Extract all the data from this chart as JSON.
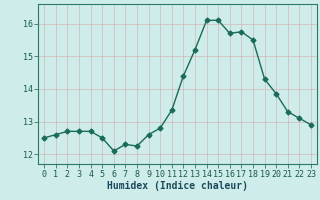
{
  "x": [
    0,
    1,
    2,
    3,
    4,
    5,
    6,
    7,
    8,
    9,
    10,
    11,
    12,
    13,
    14,
    15,
    16,
    17,
    18,
    19,
    20,
    21,
    22,
    23
  ],
  "y": [
    12.5,
    12.6,
    12.7,
    12.7,
    12.7,
    12.5,
    12.1,
    12.3,
    12.25,
    12.6,
    12.8,
    13.35,
    14.4,
    15.2,
    16.1,
    16.1,
    15.7,
    15.75,
    15.5,
    14.3,
    13.85,
    13.3,
    13.1,
    12.9
  ],
  "line_color": "#1a6b5a",
  "marker": "D",
  "markersize": 2.5,
  "linewidth": 1.0,
  "bg_color": "#ceecea",
  "grid_color_v": "#d4b8b8",
  "grid_color_h": "#d4b8b8",
  "xlabel": "Humidex (Indice chaleur)",
  "xlim": [
    -0.5,
    23.5
  ],
  "ylim": [
    11.7,
    16.6
  ],
  "yticks": [
    12,
    13,
    14,
    15,
    16
  ],
  "xticks": [
    0,
    1,
    2,
    3,
    4,
    5,
    6,
    7,
    8,
    9,
    10,
    11,
    12,
    13,
    14,
    15,
    16,
    17,
    18,
    19,
    20,
    21,
    22,
    23
  ],
  "tick_fontsize": 6,
  "xlabel_fontsize": 7,
  "xlabel_color": "#1a4a5a",
  "tick_color": "#1a5a4a"
}
